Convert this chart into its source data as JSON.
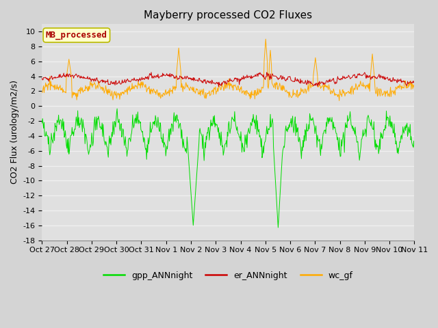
{
  "title": "Mayberry processed CO2 Fluxes",
  "ylabel": "CO2 Flux (urology/m2/s)",
  "ylim": [
    -18,
    11
  ],
  "yticks": [
    -18,
    -16,
    -14,
    -12,
    -10,
    -8,
    -6,
    -4,
    -2,
    0,
    2,
    4,
    6,
    8,
    10
  ],
  "xtick_labels": [
    "Oct 27",
    "Oct 28",
    "Oct 29",
    "Oct 30",
    "Oct 31",
    "Nov 1",
    "Nov 2",
    "Nov 3",
    "Nov 4",
    "Nov 5",
    "Nov 6",
    "Nov 7",
    "Nov 8",
    "Nov 9",
    "Nov 10",
    "Nov 11"
  ],
  "legend_label": "MB_processed",
  "legend_text_color": "#aa0000",
  "legend_box_facecolor": "#ffffcc",
  "legend_box_edgecolor": "#bbbb00",
  "line_colors": {
    "gpp": "#00dd00",
    "er": "#cc0000",
    "wc": "#ffaa00"
  },
  "legend_labels": [
    "gpp_ANNnight",
    "er_ANNnight",
    "wc_gf"
  ],
  "fig_facecolor": "#d4d4d4",
  "plot_bg_color": "#e0e0e0",
  "grid_color": "#f0f0f0",
  "title_fontsize": 11,
  "axis_fontsize": 9,
  "tick_fontsize": 8,
  "legend_fontsize": 9,
  "n_points": 720,
  "seed": 42
}
